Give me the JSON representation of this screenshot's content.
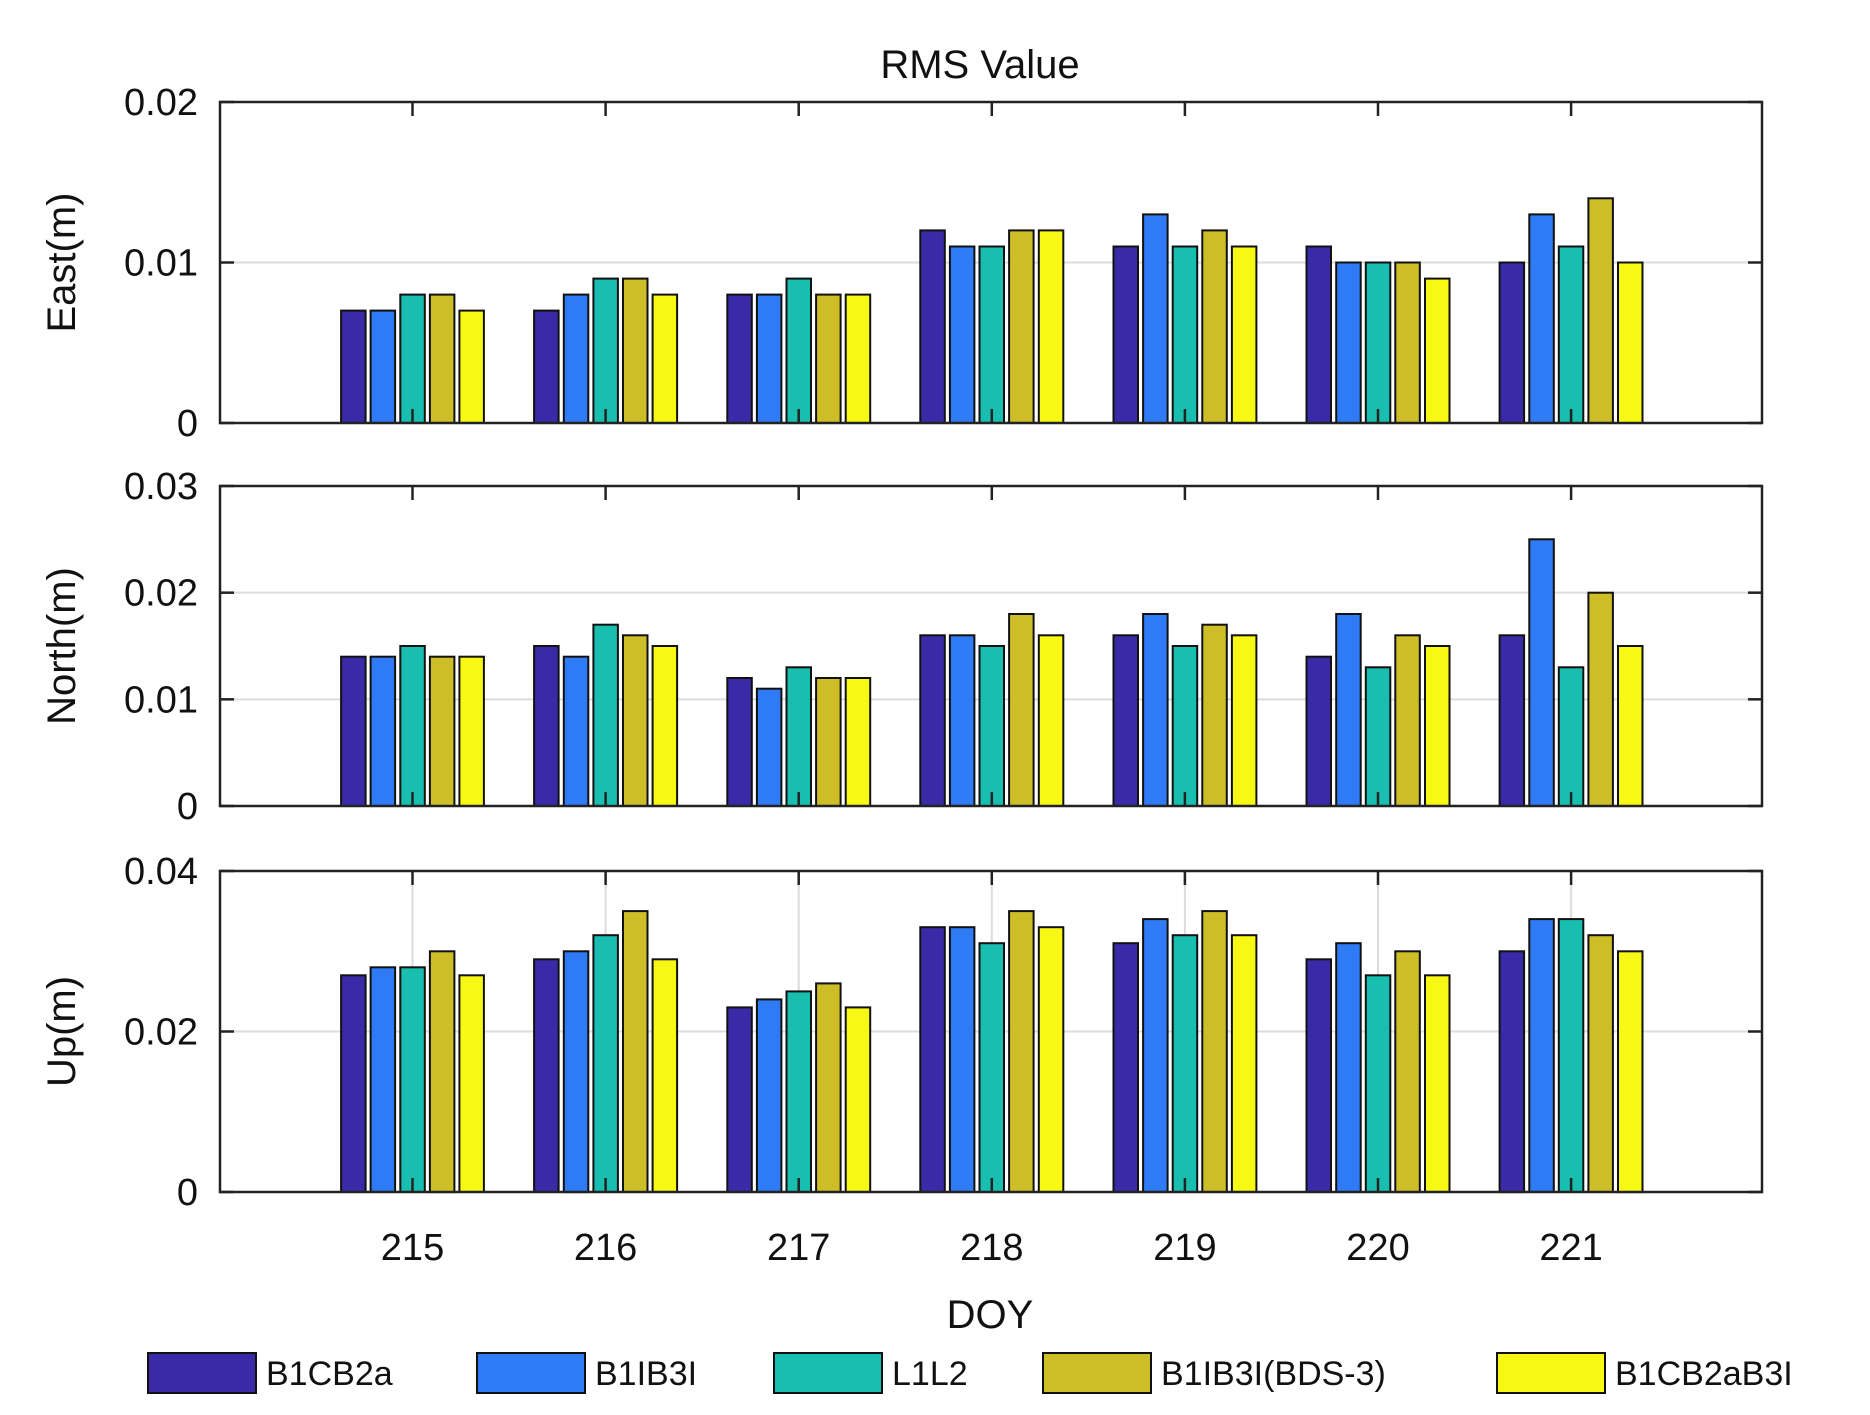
{
  "chart_data": {
    "type": "bar",
    "title": "RMS Value",
    "xlabel": "DOY",
    "categories": [
      "215",
      "216",
      "217",
      "218",
      "219",
      "220",
      "221"
    ],
    "legend": [
      "B1CB2a",
      "B1IB3I",
      "L1L2",
      "B1IB3I(BDS-3)",
      "B1CB2aB3I"
    ],
    "legend_position": "bottom",
    "colors": [
      "#3A2AA8",
      "#2F7BF5",
      "#18BFB0",
      "#CDBD27",
      "#F8F815"
    ],
    "grid": true,
    "panels": [
      {
        "ylabel": "East(m)",
        "ylim": [
          0,
          0.02
        ],
        "yticks": [
          0,
          0.01,
          0.02
        ],
        "ytick_labels": [
          "0",
          "0.01",
          "0.02"
        ],
        "series": [
          {
            "name": "B1CB2a",
            "values": [
              0.007,
              0.007,
              0.008,
              0.012,
              0.011,
              0.011,
              0.01
            ]
          },
          {
            "name": "B1IB3I",
            "values": [
              0.007,
              0.008,
              0.008,
              0.011,
              0.013,
              0.01,
              0.013
            ]
          },
          {
            "name": "L1L2",
            "values": [
              0.008,
              0.009,
              0.009,
              0.011,
              0.011,
              0.01,
              0.011
            ]
          },
          {
            "name": "B1IB3I(BDS-3)",
            "values": [
              0.008,
              0.009,
              0.008,
              0.012,
              0.012,
              0.01,
              0.014
            ]
          },
          {
            "name": "B1CB2aB3I",
            "values": [
              0.007,
              0.008,
              0.008,
              0.012,
              0.011,
              0.009,
              0.01
            ]
          }
        ]
      },
      {
        "ylabel": "North(m)",
        "ylim": [
          0,
          0.03
        ],
        "yticks": [
          0,
          0.01,
          0.02,
          0.03
        ],
        "ytick_labels": [
          "0",
          "0.01",
          "0.02",
          "0.03"
        ],
        "series": [
          {
            "name": "B1CB2a",
            "values": [
              0.014,
              0.015,
              0.012,
              0.016,
              0.016,
              0.014,
              0.016
            ]
          },
          {
            "name": "B1IB3I",
            "values": [
              0.014,
              0.014,
              0.011,
              0.016,
              0.018,
              0.018,
              0.025
            ]
          },
          {
            "name": "L1L2",
            "values": [
              0.015,
              0.017,
              0.013,
              0.015,
              0.015,
              0.013,
              0.013
            ]
          },
          {
            "name": "B1IB3I(BDS-3)",
            "values": [
              0.014,
              0.016,
              0.012,
              0.018,
              0.017,
              0.016,
              0.02
            ]
          },
          {
            "name": "B1CB2aB3I",
            "values": [
              0.014,
              0.015,
              0.012,
              0.016,
              0.016,
              0.015,
              0.015
            ]
          }
        ]
      },
      {
        "ylabel": "Up(m)",
        "ylim": [
          0,
          0.04
        ],
        "yticks": [
          0,
          0.02,
          0.04
        ],
        "ytick_labels": [
          "0",
          "0.02",
          "0.04"
        ],
        "xgrid": true,
        "series": [
          {
            "name": "B1CB2a",
            "values": [
              0.027,
              0.029,
              0.023,
              0.033,
              0.031,
              0.029,
              0.03
            ]
          },
          {
            "name": "B1IB3I",
            "values": [
              0.028,
              0.03,
              0.024,
              0.033,
              0.034,
              0.031,
              0.034
            ]
          },
          {
            "name": "L1L2",
            "values": [
              0.028,
              0.032,
              0.025,
              0.031,
              0.032,
              0.027,
              0.034
            ]
          },
          {
            "name": "B1IB3I(BDS-3)",
            "values": [
              0.03,
              0.035,
              0.026,
              0.035,
              0.035,
              0.03,
              0.032
            ]
          },
          {
            "name": "B1CB2aB3I",
            "values": [
              0.027,
              0.029,
              0.023,
              0.033,
              0.032,
              0.027,
              0.03
            ]
          }
        ]
      }
    ]
  }
}
